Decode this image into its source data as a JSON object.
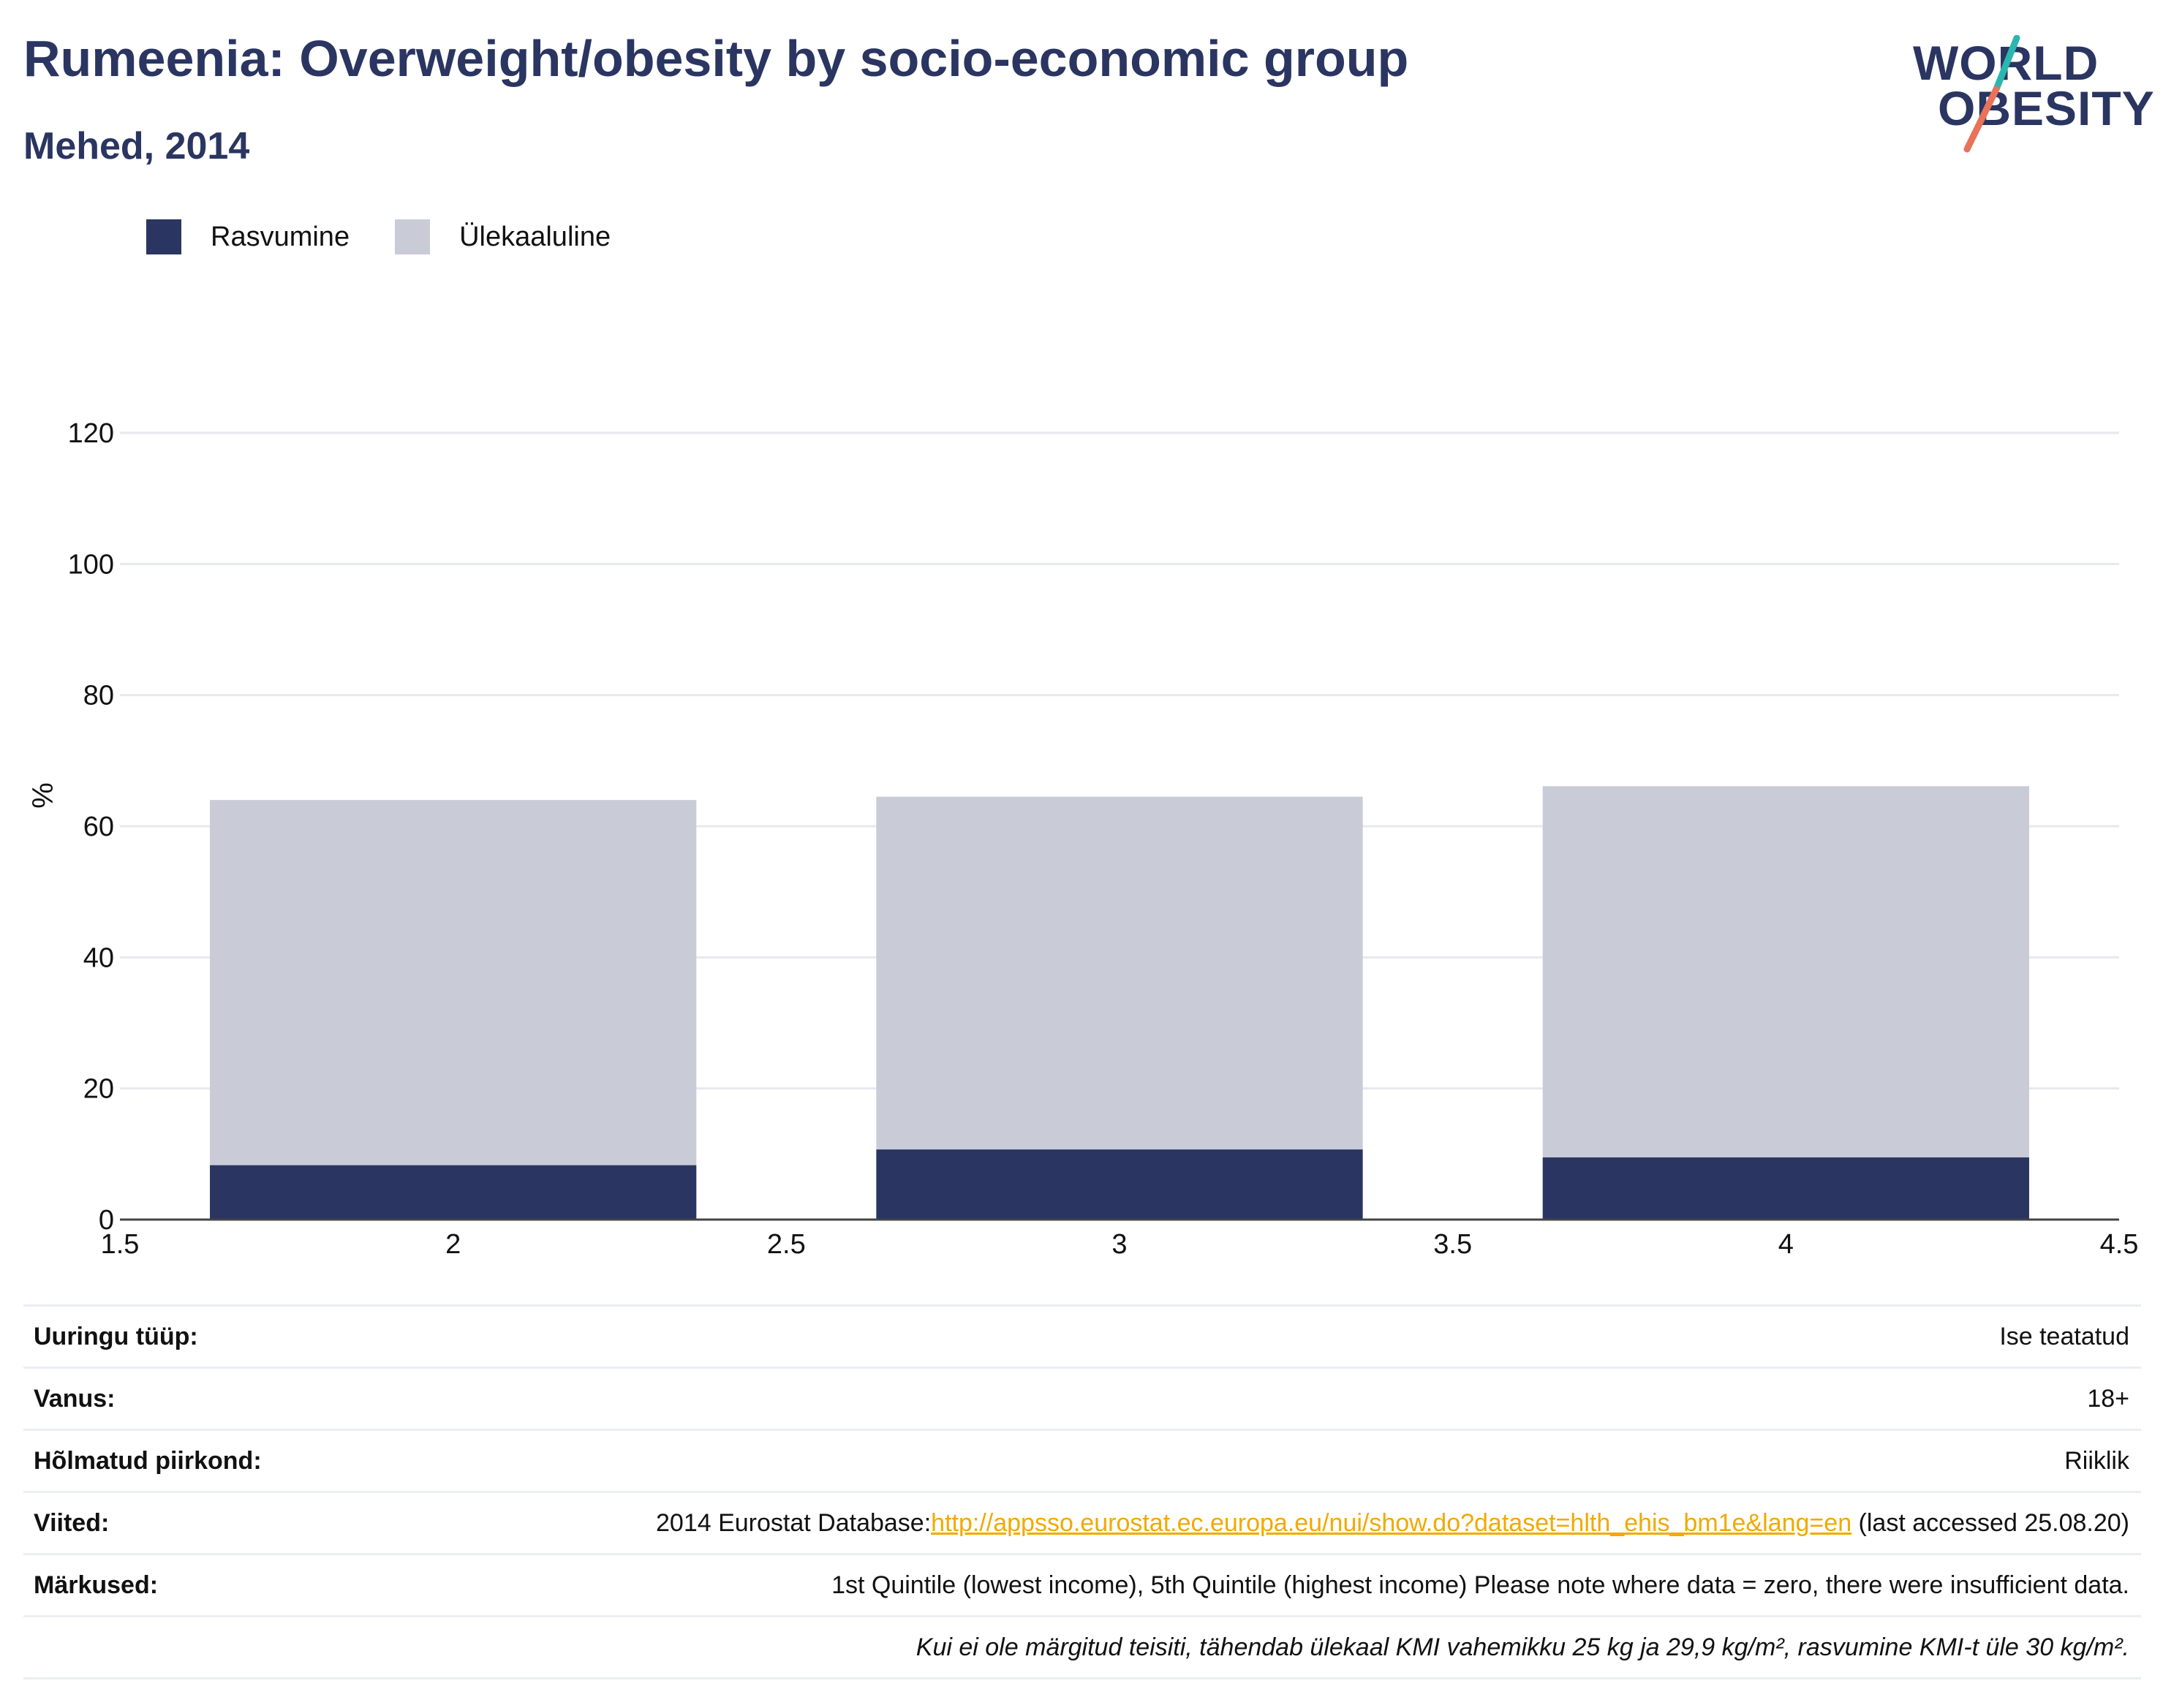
{
  "header": {
    "title": "Rumeenia: Overweight/obesity by socio-economic group",
    "subtitle": "Mehed, 2014"
  },
  "logo": {
    "line1": "WORLD",
    "line2": "OBESITY",
    "colors": {
      "text": "#2a3561",
      "slash_top": "#2bb6b0",
      "slash_bottom": "#e8735a"
    }
  },
  "legend": [
    {
      "label": "Rasvumine",
      "color": "#2a3561"
    },
    {
      "label": "Ülekaaluline",
      "color": "#c9ccd7"
    }
  ],
  "chart_data": {
    "type": "bar",
    "stacked": true,
    "x": [
      2,
      3,
      4
    ],
    "series": [
      {
        "name": "Rasvumine",
        "color": "#2a3561",
        "values": [
          8.3,
          10.7,
          9.5
        ]
      },
      {
        "name": "Ülekaaluline",
        "color": "#c9ccd7",
        "values": [
          55.7,
          53.8,
          56.6
        ]
      }
    ],
    "totals": [
      64.0,
      64.5,
      66.1
    ],
    "xlim": [
      1.5,
      4.5
    ],
    "xticks": [
      "1.5",
      "2",
      "2.5",
      "3",
      "3.5",
      "4",
      "4.5"
    ],
    "ylim": [
      0,
      120
    ],
    "yticks": [
      "0",
      "20",
      "40",
      "60",
      "80",
      "100",
      "120"
    ],
    "ylabel": "%",
    "xlabel": "",
    "grid": true,
    "legend_position": "top-left"
  },
  "meta": [
    {
      "label": "Uuringu tüüp:",
      "value": "Ise teatatud"
    },
    {
      "label": "Vanus:",
      "value": "18+"
    },
    {
      "label": "Hõlmatud piirkond:",
      "value": "Riiklik"
    },
    {
      "label": "Viited:",
      "value_prefix": "2014 Eurostat Database:",
      "link": "http://appsso.eurostat.ec.europa.eu/nui/show.do?dataset=hlth_ehis_bm1e&lang=en",
      "value_suffix": " (last accessed 25.08.20)"
    },
    {
      "label": "Märkused:",
      "value": "1st Quintile (lowest income), 5th Quintile (highest income) Please note where data = zero, there were insufficient data."
    },
    {
      "label": "",
      "value": "Kui ei ole märgitud teisiti, tähendab ülekaal KMI vahemikku 25 kg ja 29,9 kg/m², rasvumine KMI-t üle 30 kg/m²."
    }
  ]
}
